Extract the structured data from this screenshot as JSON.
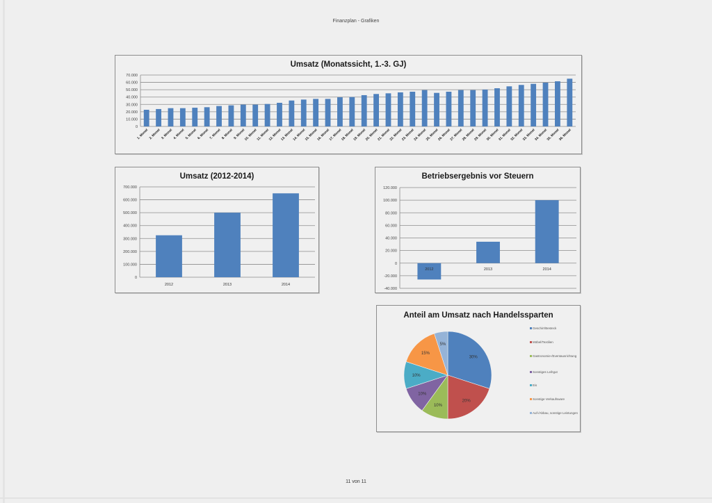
{
  "page": {
    "header": "Finanzplan - Grafiken",
    "footer": "11 von 11"
  },
  "colors": {
    "bar": "#4f81bd",
    "grid": "#8c8c8c",
    "pie": [
      "#4f81bd",
      "#c0504d",
      "#9bbb59",
      "#8064a2",
      "#4bacc6",
      "#f79646",
      "#95b3d7"
    ]
  },
  "chart_data": [
    {
      "type": "bar",
      "title": "Umsatz (Monatssicht, 1.-3. GJ)",
      "xlabel": "",
      "ylabel": "",
      "ylim": [
        0,
        70000
      ],
      "yticks": [
        "0",
        "10.000",
        "20.000",
        "30.000",
        "40.000",
        "50.000",
        "60.000",
        "70.000"
      ],
      "grid": true,
      "categories": [
        "1. Monat",
        "2. Monat",
        "3. Monat",
        "4. Monat",
        "5. Monat",
        "6. Monat",
        "7. Monat",
        "8. Monat",
        "9. Monat",
        "10. Monat",
        "11. Monat",
        "12. Monat",
        "13. Monat",
        "14. Monat",
        "15. Monat",
        "16. Monat",
        "17. Monat",
        "18. Monat",
        "19. Monat",
        "20. Monat",
        "21. Monat",
        "22. Monat",
        "23. Monat",
        "24. Monat",
        "25. Monat",
        "26. Monat",
        "27. Monat",
        "28. Monat",
        "29. Monat",
        "30. Monat",
        "31. Monat",
        "32. Monat",
        "33. Monat",
        "34. Monat",
        "35. Monat",
        "36. Monat"
      ],
      "values": [
        22700,
        23700,
        24900,
        24900,
        25500,
        26200,
        27800,
        28700,
        29700,
        29700,
        30600,
        32200,
        35300,
        36600,
        37500,
        37500,
        39700,
        40000,
        42600,
        44200,
        45100,
        46400,
        47300,
        49500,
        45700,
        47300,
        49500,
        49500,
        50200,
        52000,
        54600,
        56500,
        58000,
        59600,
        61500,
        65000
      ]
    },
    {
      "type": "bar",
      "title": "Umsatz (2012-2014)",
      "xlabel": "",
      "ylabel": "",
      "ylim": [
        0,
        700000
      ],
      "yticks": [
        "0",
        "100.000",
        "200.000",
        "300.000",
        "400.000",
        "500.000",
        "600.000",
        "700.000"
      ],
      "grid": true,
      "categories": [
        "2012",
        "2013",
        "2014"
      ],
      "values": [
        325000,
        500000,
        650000
      ]
    },
    {
      "type": "bar",
      "title": "Betriebsergebnis vor Steuern",
      "xlabel": "",
      "ylabel": "",
      "ylim": [
        -40000,
        120000
      ],
      "yticks": [
        "-40.000",
        "-20.000",
        "0",
        "20.000",
        "40.000",
        "60.000",
        "80.000",
        "100.000",
        "120.000"
      ],
      "grid": true,
      "categories": [
        "2012",
        "2013",
        "2014"
      ],
      "values": [
        -26000,
        34000,
        100000
      ]
    },
    {
      "type": "pie",
      "title": "Anteil am Umsatz nach Handelssparten",
      "legend_position": "right",
      "categories": [
        "Geschirr/Besteck",
        "Möbel/Textilien",
        "Gastronomie-/Eventausrichtung",
        "Sonstiges Leihgut",
        "Eis",
        "Sonstige Verkaufsware",
        "Auf-/Abbau, sonstige Leistungen"
      ],
      "values": [
        30,
        20,
        10,
        10,
        10,
        15,
        5
      ],
      "labels": [
        "30%",
        "20%",
        "10%",
        "10%",
        "10%",
        "15%",
        "5%"
      ]
    }
  ]
}
